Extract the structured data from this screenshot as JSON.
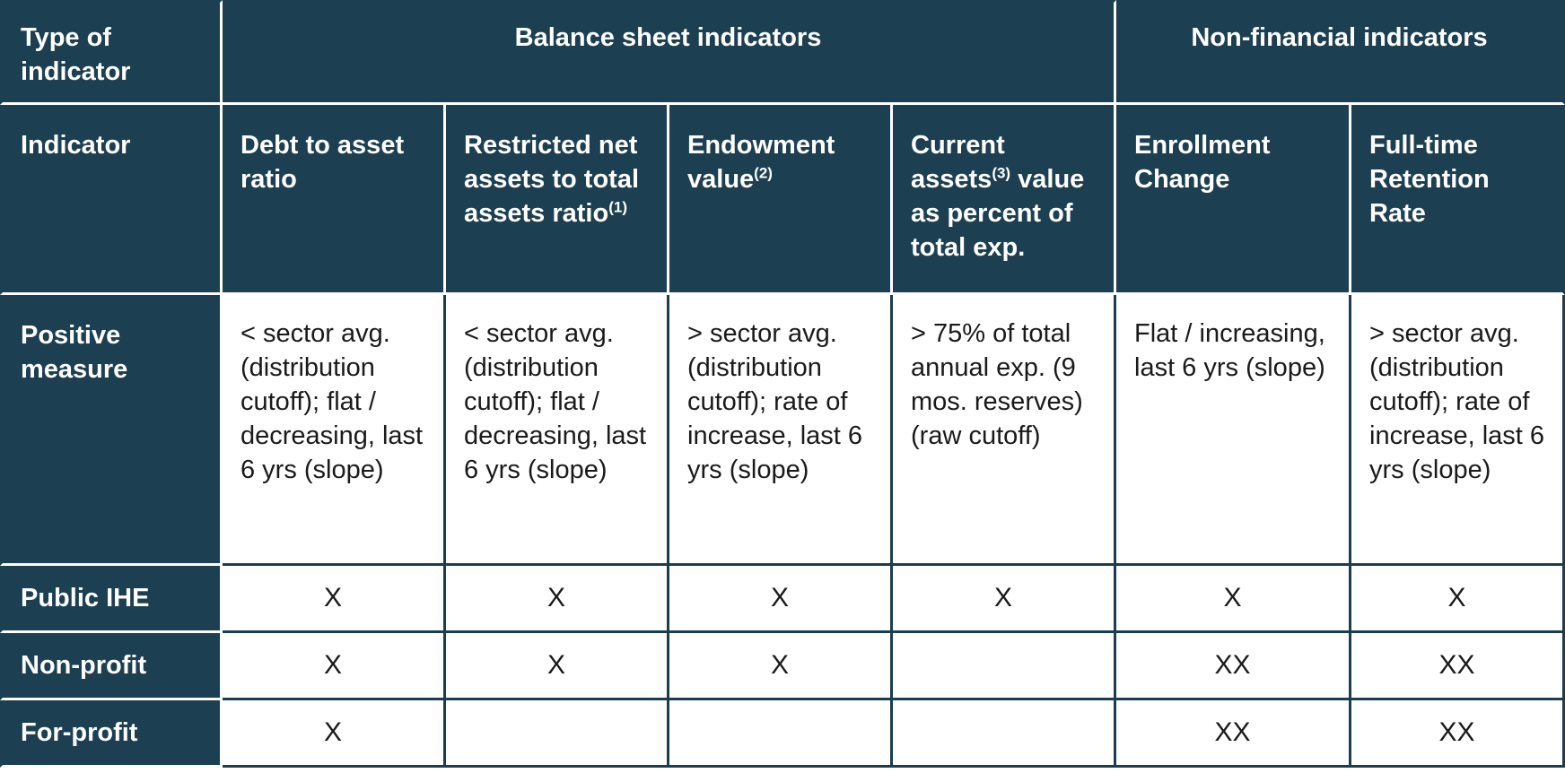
{
  "table": {
    "header_row1": {
      "type_label": "Type of indicator",
      "balance_sheet": "Balance sheet indicators",
      "non_financial": "Non-financial indicators"
    },
    "header_row2": {
      "indicator_label": "Indicator",
      "debt_to_asset": "Debt to asset ratio",
      "restricted_net_assets": "Restricted net assets to total assets ratio",
      "restricted_note": "(1)",
      "endowment": "Endowment value",
      "endowment_note": "(2)",
      "current_assets_a": "Current assets",
      "current_assets_note": "(3)",
      "current_assets_b": " value as percent of total exp.",
      "enrollment_change": "Enrollment Change",
      "retention_rate": "Full-time Retention Rate"
    },
    "positive_measure": {
      "label": "Positive measure",
      "debt_to_asset": "< sector avg. (distribution cutoff); flat / decreasing, last 6 yrs (slope)",
      "restricted_net_assets": "< sector avg. (distribution cutoff); flat / decreasing, last 6 yrs (slope)",
      "endowment": "> sector avg. (distribution cutoff); rate of increase, last 6 yrs (slope)",
      "current_assets": "> 75% of total annual exp. (9 mos. reserves) (raw cutoff)",
      "enrollment_change": "Flat / increasing, last 6 yrs (slope)",
      "retention_rate": "> sector avg. (distribution cutoff); rate of increase, last 6 yrs (slope)"
    },
    "rows": [
      {
        "label": "Public IHE",
        "marks": [
          "X",
          "X",
          "X",
          "X",
          "X",
          "X"
        ]
      },
      {
        "label": "Non-profit",
        "marks": [
          "X",
          "X",
          "X",
          "",
          "XX",
          "XX"
        ]
      },
      {
        "label": "For-profit",
        "marks": [
          "X",
          "",
          "",
          "",
          "XX",
          "XX"
        ]
      }
    ]
  }
}
